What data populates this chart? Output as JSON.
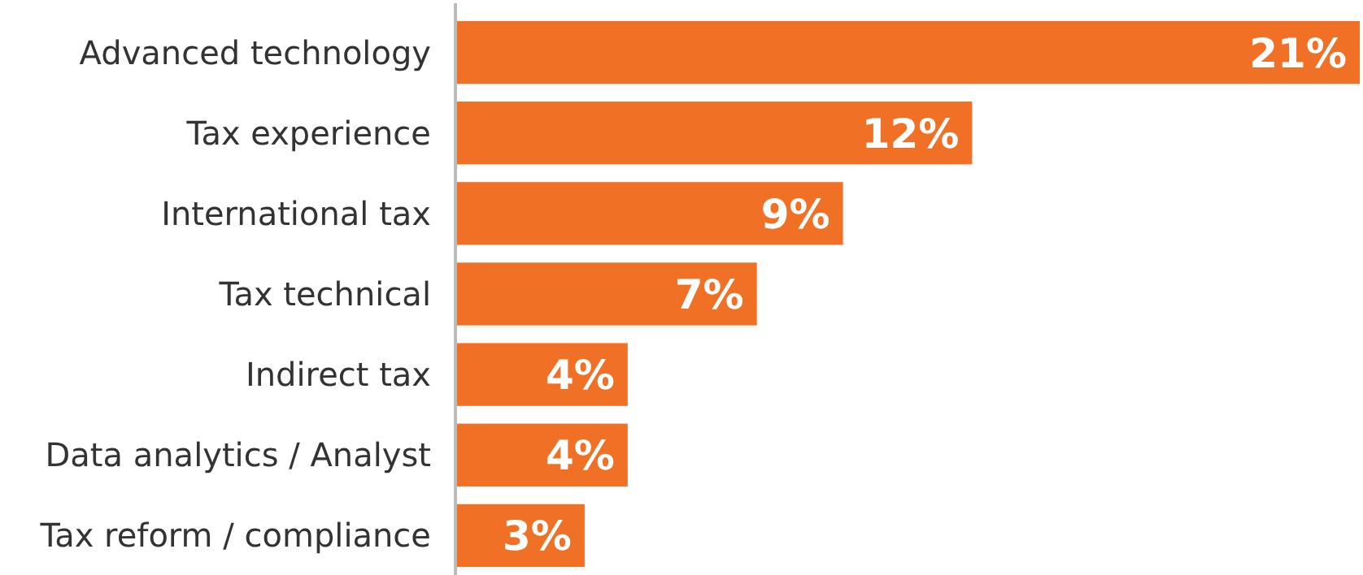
{
  "chart_data": {
    "type": "bar",
    "orientation": "horizontal",
    "categories": [
      "Advanced technology",
      "Tax experience",
      "International tax",
      "Tax technical",
      "Indirect tax",
      "Data analytics / Analyst",
      "Tax reform / compliance"
    ],
    "values": [
      21,
      12,
      9,
      7,
      4,
      4,
      3
    ],
    "value_labels": [
      "21%",
      "12%",
      "9%",
      "7%",
      "4%",
      "4%",
      "3%"
    ],
    "color": "#f07125"
  }
}
